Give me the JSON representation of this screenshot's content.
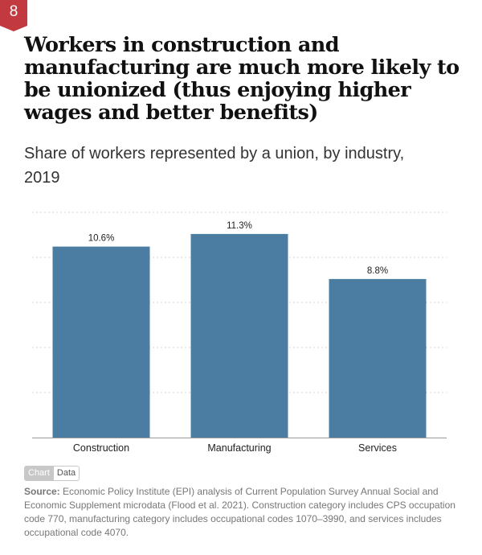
{
  "badge": {
    "number": "8"
  },
  "title": "Workers in construction and manufacturing are much more likely to be unionized (thus enjoying higher wages and better benefits)",
  "subtitle": "Share of workers represented by a union, by industry, 2019",
  "toggle": {
    "chart_label": "Chart",
    "data_label": "Data"
  },
  "source": {
    "label": "Source:",
    "text": "Economic Policy Institute (EPI) analysis of Current Population Survey Annual Social and Economic Supplement microdata (Flood et al. 2021). Construction category includes CPS occupation code 770, manufacturing category includes occupational codes 1070–3990, and services includes occupational code 4070."
  },
  "colors": {
    "bar": "#4a7da1",
    "badge": "#c23a3f",
    "grid": "#d3d3d3"
  },
  "chart_data": {
    "type": "bar",
    "title": "",
    "xlabel": "",
    "ylabel": "",
    "categories": [
      "Construction",
      "Manufacturing",
      "Services"
    ],
    "values": [
      10.6,
      11.3,
      8.8
    ],
    "value_labels": [
      "10.6%",
      "11.3%",
      "8.8%"
    ],
    "ylim": [
      0,
      12.5
    ],
    "grid": true,
    "legend": "none"
  }
}
